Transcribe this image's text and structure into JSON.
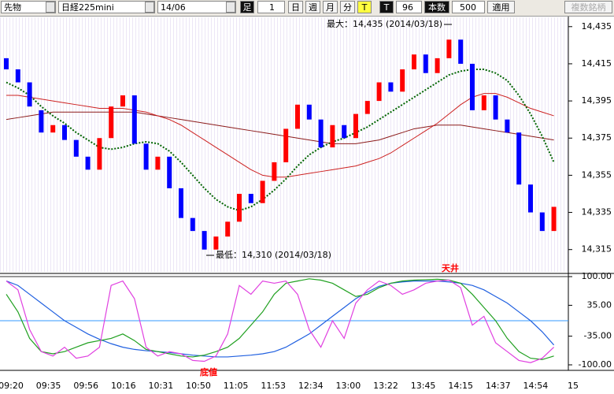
{
  "toolbar": {
    "market": "先物",
    "symbol": "日経225mini",
    "contract": "14/06",
    "bar_label": "足",
    "bar_value": "1",
    "periods": [
      "日",
      "週",
      "月",
      "分",
      "T"
    ],
    "tick_label": "T",
    "tick_value": "96",
    "count_label": "本数",
    "count_value": "500",
    "apply": "適用",
    "multi": "複数銘柄"
  },
  "chart_data": [
    {
      "type": "candlestick",
      "up_color": "#ff0000",
      "down_color": "#0000ff",
      "ylim": [
        14303,
        14440
      ],
      "yticks": [
        {
          "value": 14435,
          "label": "14,435"
        },
        {
          "value": 14415,
          "label": "14,415"
        },
        {
          "value": 14395,
          "label": "14,395"
        },
        {
          "value": 14375,
          "label": "14,375"
        },
        {
          "value": 14355,
          "label": "14,355"
        },
        {
          "value": 14335,
          "label": "14,335"
        },
        {
          "value": 14315,
          "label": "14,315"
        }
      ],
      "open": [
        14418,
        14412,
        14405,
        14390,
        14378,
        14382,
        14374,
        14365,
        14358,
        14375,
        14392,
        14398,
        14372,
        14358,
        14365,
        14348,
        14332,
        14325,
        14315,
        14322,
        14330,
        14345,
        14340,
        14352,
        14362,
        14380,
        14393,
        14385,
        14370,
        14382,
        14375,
        14388,
        14395,
        14405,
        14400,
        14412,
        14420,
        14410,
        14418,
        14428,
        14415,
        14390,
        14398,
        14385,
        14378,
        14350,
        14335,
        14325
      ],
      "close": [
        14412,
        14405,
        14392,
        14378,
        14382,
        14374,
        14365,
        14358,
        14375,
        14392,
        14398,
        14372,
        14358,
        14365,
        14348,
        14332,
        14325,
        14315,
        14322,
        14330,
        14345,
        14340,
        14352,
        14362,
        14380,
        14393,
        14385,
        14370,
        14382,
        14375,
        14388,
        14395,
        14405,
        14400,
        14412,
        14420,
        14410,
        14418,
        14428,
        14415,
        14390,
        14398,
        14385,
        14378,
        14350,
        14335,
        14325,
        14338
      ],
      "series": [
        {
          "color": "#8b1a1a",
          "style": "solid",
          "values": [
            14385,
            14386,
            14387,
            14388,
            14389,
            14389,
            14389,
            14389,
            14389,
            14389,
            14389,
            14389,
            14388,
            14387,
            14386,
            14385,
            14384,
            14383,
            14382,
            14381,
            14380,
            14379,
            14378,
            14377,
            14376,
            14375,
            14374,
            14373,
            14372,
            14372,
            14372,
            14373,
            14374,
            14376,
            14378,
            14380,
            14381,
            14382,
            14382,
            14382,
            14381,
            14380,
            14379,
            14378,
            14377,
            14376,
            14375,
            14374
          ]
        },
        {
          "color": "#cc2020",
          "style": "solid",
          "values": [
            14398,
            14398,
            14397,
            14396,
            14395,
            14394,
            14393,
            14392,
            14391,
            14391,
            14391,
            14390,
            14389,
            14387,
            14385,
            14382,
            14378,
            14374,
            14370,
            14366,
            14362,
            14358,
            14355,
            14354,
            14354,
            14355,
            14356,
            14357,
            14358,
            14359,
            14360,
            14362,
            14364,
            14367,
            14371,
            14375,
            14379,
            14383,
            14388,
            14393,
            14397,
            14399,
            14399,
            14397,
            14394,
            14391,
            14389,
            14387
          ]
        },
        {
          "color": "#006400",
          "style": "dotted",
          "values": [
            14405,
            14402,
            14398,
            14392,
            14387,
            14383,
            14378,
            14374,
            14370,
            14369,
            14370,
            14372,
            14373,
            14372,
            14368,
            14362,
            14355,
            14348,
            14342,
            14338,
            14336,
            14338,
            14342,
            14347,
            14353,
            14360,
            14366,
            14370,
            14373,
            14375,
            14378,
            14381,
            14385,
            14389,
            14393,
            14397,
            14401,
            14405,
            14409,
            14411,
            14412,
            14412,
            14410,
            14406,
            14398,
            14388,
            14376,
            14362
          ]
        }
      ],
      "annotations": [
        {
          "text": "最大：14,435 (2014/03/18)"
        },
        {
          "text": "最低：14,310 (2014/03/18)"
        }
      ]
    },
    {
      "type": "line",
      "ylim": [
        -112.5,
        105.4
      ],
      "yticks": [
        {
          "value": 100,
          "label": "100.00"
        },
        {
          "value": 35,
          "label": "35.00"
        },
        {
          "value": -35,
          "label": "-35.00"
        },
        {
          "value": -100,
          "label": "-100.00"
        }
      ],
      "series": [
        {
          "color": "#2060e0",
          "values": [
            90,
            80,
            60,
            40,
            20,
            0,
            -15,
            -30,
            -42,
            -52,
            -60,
            -65,
            -68,
            -70,
            -72,
            -75,
            -78,
            -80,
            -82,
            -82,
            -80,
            -78,
            -75,
            -70,
            -60,
            -45,
            -30,
            -10,
            10,
            30,
            50,
            65,
            78,
            85,
            88,
            90,
            90,
            90,
            88,
            85,
            80,
            70,
            55,
            40,
            20,
            0,
            -25,
            -55
          ]
        },
        {
          "color": "#20a020",
          "values": [
            60,
            20,
            -40,
            -70,
            -75,
            -70,
            -60,
            -50,
            -45,
            -40,
            -30,
            -45,
            -65,
            -70,
            -75,
            -80,
            -82,
            -78,
            -70,
            -60,
            -40,
            -10,
            20,
            60,
            85,
            90,
            95,
            92,
            85,
            70,
            55,
            60,
            75,
            85,
            90,
            92,
            93,
            94,
            92,
            85,
            60,
            30,
            0,
            -40,
            -70,
            -85,
            -88,
            -80
          ]
        },
        {
          "color": "#e040e0",
          "values": [
            90,
            70,
            -20,
            -70,
            -80,
            -60,
            -85,
            -80,
            -60,
            80,
            90,
            50,
            -60,
            -80,
            -70,
            -75,
            -90,
            -92,
            -80,
            -30,
            80,
            60,
            90,
            85,
            90,
            60,
            -20,
            -60,
            0,
            -40,
            40,
            70,
            90,
            80,
            60,
            70,
            85,
            90,
            92,
            75,
            -10,
            10,
            -50,
            -70,
            -90,
            -95,
            -85,
            -60
          ]
        }
      ],
      "annotations": [
        {
          "text": "天井"
        },
        {
          "text": "底値"
        }
      ],
      "x_labels": [
        "09:20",
        "09:35",
        "09:56",
        "10:16",
        "10:31",
        "10:50",
        "11:05",
        "11:53",
        "12:34",
        "13:00",
        "13:22",
        "13:45",
        "14:15",
        "14:37",
        "14:54",
        "15"
      ]
    }
  ]
}
